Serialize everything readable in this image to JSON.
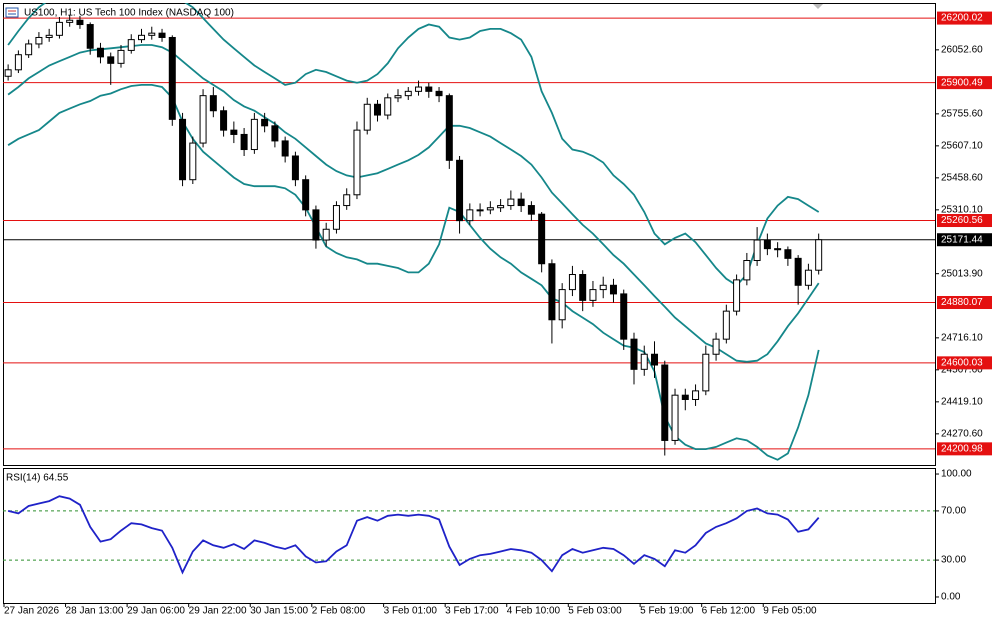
{
  "chart_data": [
    {
      "type": "candlestick",
      "title": "US100, H1:  US Tech 100 Index (NASDAQ 100)",
      "categories": [
        "27 Jan 2026",
        null,
        null,
        null,
        null,
        null,
        "28 Jan 13:00",
        null,
        null,
        null,
        null,
        null,
        "29 Jan 06:00",
        null,
        null,
        null,
        null,
        null,
        "29 Jan 22:00",
        null,
        null,
        null,
        null,
        null,
        "30 Jan 15:00",
        null,
        null,
        null,
        null,
        null,
        "2 Feb 08:00",
        null,
        null,
        null,
        null,
        null,
        null,
        "3 Feb 01:00",
        null,
        null,
        null,
        null,
        null,
        "3 Feb 17:00",
        null,
        null,
        null,
        null,
        null,
        "4 Feb 10:00",
        null,
        null,
        null,
        null,
        null,
        "5 Feb 03:00",
        null,
        null,
        null,
        null,
        null,
        null,
        "5 Feb 19:00",
        null,
        null,
        null,
        null,
        null,
        "6 Feb 12:00",
        null,
        null,
        null,
        null,
        null,
        "9 Feb 05:00",
        null,
        null,
        null,
        null,
        null
      ],
      "open": [
        25930,
        25960,
        26030,
        26080,
        26110,
        26120,
        26180,
        26190,
        26170,
        26060,
        26020,
        25990,
        26050,
        26100,
        26120,
        26130,
        26110,
        25730,
        25450,
        25620,
        25840,
        25770,
        25680,
        25660,
        25590,
        25730,
        25700,
        25630,
        25560,
        25450,
        25310,
        25170,
        25220,
        25330,
        25380,
        25680,
        25800,
        25750,
        25830,
        25840,
        25860,
        25880,
        25860,
        25840,
        25540,
        25260,
        25310,
        25310,
        25320,
        25330,
        25360,
        25330,
        25290,
        25060,
        24800,
        24940,
        25010,
        24890,
        24940,
        24960,
        24920,
        24710,
        24570,
        24640,
        24590,
        24240,
        24450,
        24430,
        24470,
        24640,
        24710,
        24840,
        24985,
        25075,
        25170,
        25130,
        25125,
        25085,
        24960,
        25030
      ],
      "high": [
        25985,
        26050,
        26100,
        26135,
        26150,
        26205,
        26215,
        26210,
        26180,
        26085,
        26040,
        26075,
        26125,
        26150,
        26160,
        26150,
        26120,
        25760,
        25650,
        25870,
        25880,
        25790,
        25720,
        25690,
        25760,
        25760,
        25720,
        25650,
        25580,
        25470,
        25330,
        25250,
        25350,
        25410,
        25720,
        25830,
        25820,
        25850,
        25870,
        25880,
        25910,
        25900,
        25880,
        25850,
        25560,
        25340,
        25340,
        25350,
        25360,
        25400,
        25390,
        25350,
        25300,
        25080,
        24970,
        25050,
        25030,
        24980,
        25000,
        24990,
        24940,
        24740,
        24680,
        24700,
        24610,
        24480,
        24480,
        24500,
        24680,
        24740,
        24870,
        25010,
        25110,
        25230,
        25200,
        25160,
        25140,
        25100,
        25060,
        25200
      ],
      "low": [
        25910,
        25945,
        26015,
        26060,
        26090,
        26105,
        26160,
        26150,
        26030,
        25990,
        25890,
        25970,
        26035,
        26085,
        26100,
        26090,
        25700,
        25420,
        25430,
        25600,
        25740,
        25650,
        25620,
        25560,
        25570,
        25670,
        25600,
        25530,
        25420,
        25280,
        25130,
        25140,
        25200,
        25310,
        25360,
        25660,
        25720,
        25730,
        25810,
        25820,
        25840,
        25830,
        25810,
        25500,
        25200,
        25240,
        25280,
        25290,
        25300,
        25310,
        25300,
        25260,
        25020,
        24690,
        24760,
        24910,
        24840,
        24860,
        24900,
        24880,
        24660,
        24500,
        24540,
        24530,
        24170,
        24220,
        24380,
        24400,
        24450,
        24610,
        24690,
        24820,
        24960,
        25050,
        25100,
        25090,
        25050,
        24870,
        24940,
        25010
      ],
      "close": [
        25960,
        26030,
        26080,
        26110,
        26120,
        26180,
        26190,
        26170,
        26060,
        26020,
        25990,
        26050,
        26100,
        26120,
        26130,
        26110,
        25730,
        25450,
        25620,
        25840,
        25770,
        25680,
        25660,
        25590,
        25730,
        25700,
        25630,
        25560,
        25450,
        25310,
        25170,
        25220,
        25330,
        25380,
        25680,
        25800,
        25750,
        25830,
        25840,
        25860,
        25880,
        25860,
        25840,
        25540,
        25260,
        25310,
        25310,
        25320,
        25330,
        25360,
        25330,
        25290,
        25060,
        24800,
        24940,
        25010,
        24890,
        24940,
        24960,
        24920,
        24710,
        24570,
        24640,
        24590,
        24240,
        24450,
        24430,
        24470,
        24640,
        24710,
        24840,
        24985,
        25075,
        25170,
        25130,
        25125,
        25085,
        24960,
        25030,
        25171.44
      ],
      "color": "#000000",
      "bands": {
        "color": "#15878a",
        "upper": [
          26075,
          26140,
          26200,
          26250,
          26285,
          26320,
          26350,
          26370,
          26380,
          26385,
          26390,
          26390,
          26385,
          26380,
          26370,
          26360,
          26330,
          26280,
          26250,
          26200,
          26150,
          26100,
          26060,
          26020,
          25980,
          25950,
          25920,
          25890,
          25900,
          25940,
          25960,
          25950,
          25930,
          25910,
          25900,
          25910,
          25940,
          25990,
          26060,
          26110,
          26150,
          26170,
          26160,
          26110,
          26100,
          26110,
          26140,
          26150,
          26150,
          26130,
          26100,
          26020,
          25860,
          25760,
          25640,
          25590,
          25580,
          25560,
          25530,
          25470,
          25430,
          25380,
          25300,
          25200,
          25150,
          25180,
          25200,
          25160,
          25100,
          25040,
          24990,
          24960,
          25010,
          25150,
          25270,
          25330,
          25370,
          25360,
          25330,
          25300
        ],
        "middle": [
          25845,
          25880,
          25920,
          25950,
          25980,
          26000,
          26020,
          26040,
          26050,
          26055,
          26060,
          26065,
          26070,
          26075,
          26075,
          26065,
          26040,
          26000,
          25960,
          25920,
          25890,
          25860,
          25820,
          25790,
          25770,
          25740,
          25710,
          25670,
          25640,
          25600,
          25560,
          25520,
          25490,
          25470,
          25460,
          25470,
          25480,
          25500,
          25520,
          25540,
          25565,
          25600,
          25650,
          25700,
          25700,
          25690,
          25670,
          25650,
          25620,
          25590,
          25560,
          25520,
          25460,
          25390,
          25340,
          25290,
          25240,
          25200,
          25150,
          25100,
          25060,
          25010,
          24960,
          24910,
          24860,
          24810,
          24770,
          24730,
          24690,
          24670,
          24640,
          24610,
          24605,
          24610,
          24640,
          24700,
          24770,
          24830,
          24900,
          24970
        ],
        "lower": [
          25610,
          25640,
          25660,
          25680,
          25720,
          25760,
          25780,
          25800,
          25815,
          25840,
          25850,
          25870,
          25885,
          25890,
          25890,
          25880,
          25830,
          25720,
          25640,
          25580,
          25540,
          25500,
          25460,
          25430,
          25420,
          25420,
          25420,
          25410,
          25380,
          25320,
          25230,
          25140,
          25110,
          25090,
          25080,
          25060,
          25060,
          25050,
          25040,
          25020,
          25020,
          25060,
          25150,
          25320,
          25300,
          25240,
          25180,
          25130,
          25090,
          25060,
          25020,
          24990,
          24960,
          24900,
          24880,
          24840,
          24810,
          24780,
          24740,
          24710,
          24680,
          24670,
          24650,
          24560,
          24350,
          24260,
          24220,
          24200,
          24200,
          24210,
          24230,
          24250,
          24240,
          24210,
          24170,
          24150,
          24180,
          24300,
          24450,
          24660
        ]
      },
      "ylim": [
        24126,
        26270
      ],
      "yticks": [
        {
          "value": 26052.6,
          "label": "26052.60"
        },
        {
          "value": 25755.6,
          "label": "25755.60"
        },
        {
          "value": 25607.1,
          "label": "25607.10"
        },
        {
          "value": 25458.6,
          "label": "25458.60"
        },
        {
          "value": 25310.1,
          "label": "25310.10"
        },
        {
          "value": 25013.9,
          "label": "25013.90"
        },
        {
          "value": 24716.1,
          "label": "24716.10"
        },
        {
          "value": 24567.6,
          "label": "24567.60"
        },
        {
          "value": 24419.1,
          "label": "24419.10"
        },
        {
          "value": 24270.6,
          "label": "24270.60"
        }
      ],
      "levels": {
        "color": "#e41010",
        "values": [
          26200.02,
          25900.49,
          25260.56,
          24880.07,
          24600.03,
          24200.98
        ]
      },
      "last_price": 25171.44
    },
    {
      "type": "line",
      "title": "RSI(14) 64.55",
      "values": [
        70,
        68,
        74,
        76,
        78,
        82,
        80,
        75,
        57,
        45,
        47,
        54,
        60,
        59,
        56,
        54,
        40,
        20,
        37,
        46,
        42,
        40,
        43,
        39,
        46,
        44,
        41,
        39,
        42,
        33,
        28,
        29,
        37,
        42,
        62,
        65,
        62,
        66,
        67,
        66,
        67,
        66,
        63,
        41,
        26,
        31,
        34,
        35,
        37,
        39,
        38,
        36,
        30,
        21,
        34,
        39,
        36,
        38,
        40,
        39,
        34,
        27,
        34,
        31,
        25,
        38,
        36,
        42,
        52,
        57,
        60,
        64,
        70,
        72,
        68,
        67,
        63,
        53,
        55,
        64.55
      ],
      "color": "#1f22c8",
      "ylim": [
        -4.9,
        104.9
      ],
      "yticks": [
        {
          "value": 100,
          "label": "100.00"
        },
        {
          "value": 70,
          "label": "70.00"
        },
        {
          "value": 30,
          "label": "30.00"
        },
        {
          "value": 0,
          "label": "0.00"
        }
      ],
      "levels": [
        70,
        30
      ],
      "levels_color": "#2f8f2f"
    }
  ]
}
